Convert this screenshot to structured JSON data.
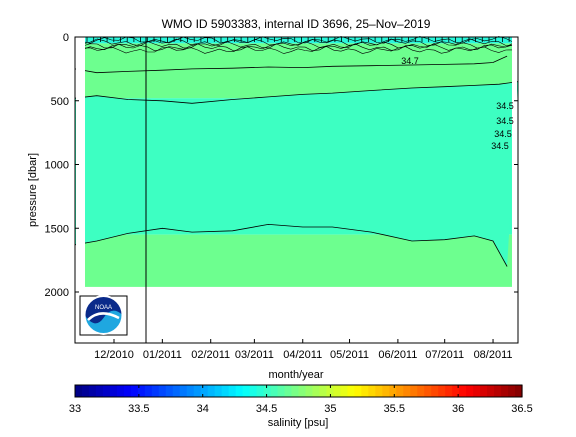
{
  "chart_data": {
    "type": "heatmap",
    "title": "WMO ID 5903383, internal ID 3696, 25–Nov–2019",
    "xlabel": "month/year",
    "ylabel": "pressure [dbar]",
    "x_ticks": [
      "12/2010",
      "01/2011",
      "02/2011",
      "03/2011",
      "04/2011",
      "05/2011",
      "06/2011",
      "07/2011",
      "08/2011"
    ],
    "x_range": [
      "2010-11-06",
      "2011-08-17"
    ],
    "y_ticks": [
      0,
      500,
      1000,
      1500,
      2000
    ],
    "ylim": [
      2400,
      0
    ],
    "y_reversed": true,
    "grid": false,
    "colorbar": {
      "label": "salinity [psu]",
      "ticks": [
        33,
        33.5,
        34,
        34.5,
        35,
        35.5,
        36,
        36.5
      ],
      "range": [
        33,
        36.5
      ],
      "colormap": "jet"
    },
    "contour_labels": [
      "34.7",
      "34.5",
      "34.5",
      "34.5",
      "34.5"
    ],
    "layers": [
      {
        "salinity_psu": 34.3,
        "pressure_from_dbar": 0,
        "pressure_to_dbar": 50,
        "color": "#2af7dc"
      },
      {
        "salinity_psu": 34.7,
        "pressure_from_dbar": 50,
        "pressure_to_dbar": 480,
        "color": "#6dff8f"
      },
      {
        "salinity_psu": 34.5,
        "pressure_from_dbar": 480,
        "pressure_to_dbar": 1550,
        "color": "#3dffc2"
      },
      {
        "salinity_psu": 34.7,
        "pressure_from_dbar": 1550,
        "pressure_to_dbar": 1960,
        "color": "#6dff8f"
      }
    ],
    "contours": [
      {
        "level": 34.7,
        "x": [
          "2010-11-06",
          "2010-11-20",
          "2010-12-10",
          "2011-01-01",
          "2011-01-20",
          "2011-02-15",
          "2011-03-10",
          "2011-04-01",
          "2011-04-20",
          "2011-05-15",
          "2011-06-10",
          "2011-07-01",
          "2011-07-20",
          "2011-08-01",
          "2011-08-10"
        ],
        "pressure": [
          250,
          280,
          270,
          260,
          250,
          245,
          235,
          240,
          230,
          225,
          220,
          215,
          210,
          200,
          150
        ]
      },
      {
        "level": 34.5,
        "x": [
          "2010-11-06",
          "2010-11-20",
          "2010-12-10",
          "2011-01-01",
          "2011-01-20",
          "2011-02-15",
          "2011-03-10",
          "2011-04-01",
          "2011-04-20",
          "2011-05-15",
          "2011-06-10",
          "2011-07-01",
          "2011-07-20",
          "2011-08-05",
          "2011-08-17"
        ],
        "pressure": [
          480,
          460,
          490,
          500,
          520,
          490,
          470,
          450,
          440,
          420,
          400,
          390,
          380,
          370,
          350
        ]
      },
      {
        "level": 34.5,
        "x": [
          "2010-11-06",
          "2010-11-20",
          "2010-12-10",
          "2011-01-01",
          "2011-01-20",
          "2011-02-15",
          "2011-03-10",
          "2011-04-01",
          "2011-04-20",
          "2011-05-15",
          "2011-06-10",
          "2011-07-01",
          "2011-07-20",
          "2011-08-01",
          "2011-08-10"
        ],
        "pressure": [
          1630,
          1600,
          1540,
          1500,
          1530,
          1520,
          1470,
          1490,
          1490,
          1530,
          1600,
          1590,
          1560,
          1600,
          1800
        ]
      }
    ],
    "data_max_pressure_dbar": 1980
  },
  "logo": {
    "text": "NOAA",
    "colors": {
      "top": "#0a2a8a",
      "bottom": "#1fa7e0",
      "ring": "#ffffff"
    }
  }
}
